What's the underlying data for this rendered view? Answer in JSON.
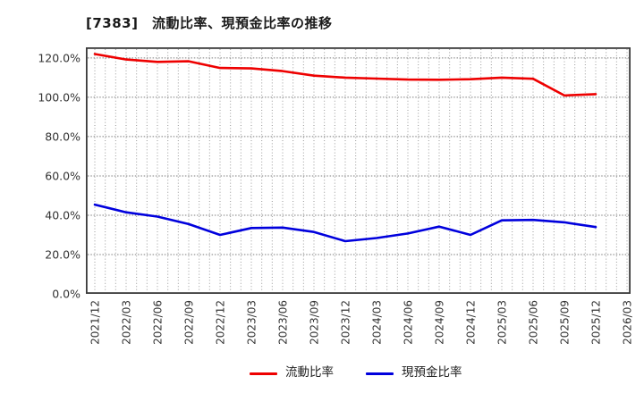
{
  "title": "[7383]　流動比率、現預金比率の推移",
  "colors": {
    "background": "#ffffff",
    "frame": "#3a3a3a",
    "grid_vertical": "#9a9a9a",
    "grid_horizontal": "#7d7d7d",
    "tick_text": "#333333",
    "title_text": "#1a1a1a"
  },
  "chart_data": {
    "type": "line",
    "title": "[7383]　流動比率、現預金比率の推移",
    "x_labels": [
      "2021/12",
      "2022/03",
      "2022/06",
      "2022/09",
      "2022/12",
      "2023/03",
      "2023/06",
      "2023/09",
      "2023/12",
      "2024/03",
      "2024/06",
      "2024/09",
      "2024/12",
      "2025/03",
      "2025/06",
      "2025/09",
      "2025/12",
      "2026/03"
    ],
    "y_ticks": {
      "values": [
        0,
        20,
        40,
        60,
        80,
        100,
        120
      ],
      "labels": [
        "0.0%",
        "20.0%",
        "40.0%",
        "60.0%",
        "80.0%",
        "100.0%",
        "120.0%"
      ]
    },
    "ylim": [
      0,
      125.4
    ],
    "grid": {
      "horizontal": "major-dotted",
      "vertical": "monthly-dotted",
      "months_total": 51
    },
    "legend_position": "bottom-center",
    "series": [
      {
        "name": "流動比率",
        "slug": "current-ratio",
        "color": "#ee0000",
        "values": [
          122.0,
          119.2,
          118.0,
          118.3,
          114.9,
          114.7,
          113.3,
          111.0,
          110.0,
          109.5,
          109.0,
          108.9,
          109.2,
          110.0,
          109.4,
          100.9,
          101.6
        ]
      },
      {
        "name": "現預金比率",
        "slug": "cash-ratio",
        "color": "#0000dd",
        "values": [
          45.4,
          41.5,
          39.3,
          35.5,
          30.0,
          33.5,
          33.7,
          31.5,
          26.8,
          28.4,
          30.7,
          34.2,
          30.0,
          37.4,
          37.6,
          36.4,
          34.0
        ]
      }
    ]
  }
}
